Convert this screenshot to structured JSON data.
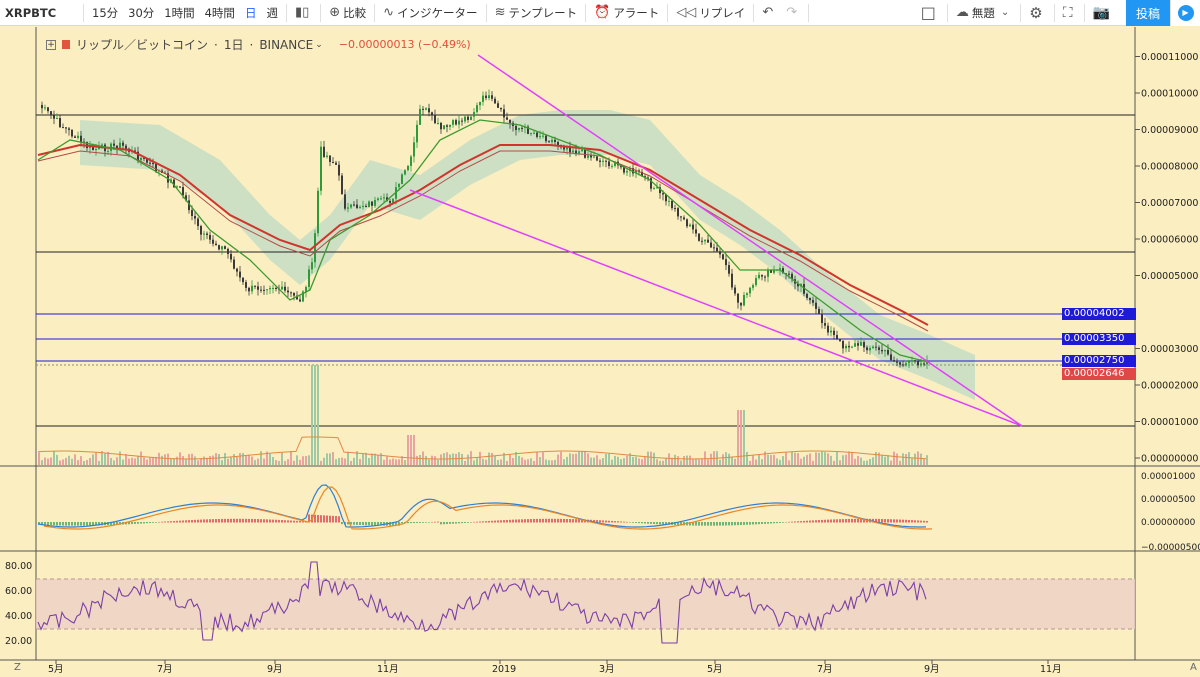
{
  "toolbar": {
    "symbol": "XRPBTC",
    "intervals": [
      "15分",
      "30分",
      "1時間",
      "4時間",
      "日",
      "週"
    ],
    "active_interval": "日",
    "compare_label": "比較",
    "indicators_label": "インジケーター",
    "templates_label": "テンプレート",
    "alert_label": "アラート",
    "replay_label": "リプレイ",
    "layout_name": "無題",
    "post_label": "投稿",
    "icons": [
      "plus-icon",
      "candles-icon",
      "indicator-icon",
      "template-icon",
      "alarm-icon",
      "replay-icon",
      "undo-icon",
      "redo-icon",
      "square-icon",
      "cloud-icon",
      "gear-icon",
      "fullscreen-icon",
      "camera-icon",
      "play-icon"
    ]
  },
  "legend": {
    "title": "リップル／ビットコイン",
    "interval": "1日",
    "exchange": "BINANCE",
    "change": "−0.00000013 (−0.49%)"
  },
  "price_axis": {
    "ticks": [
      "0.00011000",
      "0.00010000",
      "0.00009000",
      "0.00008000",
      "0.00007000",
      "0.00006000",
      "0.00005000",
      "0.00003000",
      "0.00002000",
      "0.00001000",
      "0.00000000"
    ],
    "labels": [
      {
        "text": "0.00004002",
        "color": "#1f1ad6"
      },
      {
        "text": "0.00003350",
        "color": "#1f1ad6"
      },
      {
        "text": "0.00002750",
        "color": "#1f1ad6"
      },
      {
        "text": "0.00002646",
        "color": "#e04848"
      }
    ]
  },
  "macd_axis": {
    "ticks": [
      "0.00001000",
      "0.00000500",
      "0.00000000",
      "−0.00000500"
    ]
  },
  "rsi_axis": {
    "ticks": [
      "80.00",
      "60.00",
      "40.00",
      "20.00"
    ]
  },
  "time_axis": {
    "ticks": [
      "5月",
      "7月",
      "9月",
      "11月",
      "2019",
      "3月",
      "5月",
      "7月",
      "9月",
      "11月"
    ]
  },
  "corners": {
    "left": "Z",
    "right": "A"
  },
  "colors": {
    "background": "#fbeec1",
    "bull": "#2e9a3d",
    "bear": "#3a3a3a",
    "ma_red": "#d0342c",
    "ma_green": "#3e9a2f",
    "trendline": "#e040fb",
    "horizontal_black": "#222222",
    "horizontal_blue": "#1f1ad6",
    "ichimoku_cloud": "#a9d6c6",
    "rsi_band": "#eecfc6",
    "rsi_line": "#7b3fa6",
    "macd_line": "#2f7ed8",
    "signal_line": "#e8862a"
  }
}
